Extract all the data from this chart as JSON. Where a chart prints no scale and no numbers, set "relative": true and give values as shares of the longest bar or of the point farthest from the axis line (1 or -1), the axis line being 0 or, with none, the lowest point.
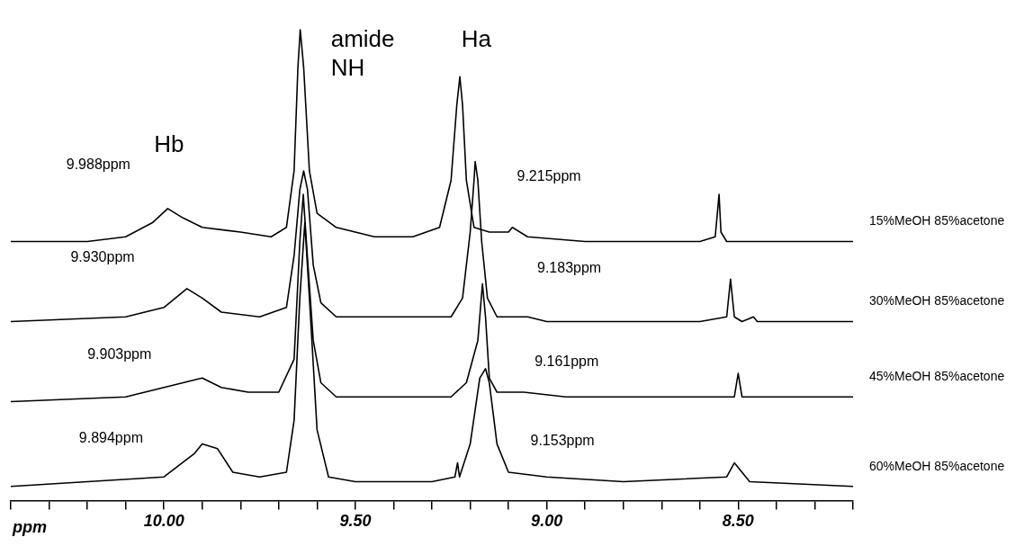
{
  "chart_data": {
    "type": "line",
    "relative": true,
    "xlabel": "ppm",
    "xlim": [
      10.4,
      8.2
    ],
    "xticks": [
      {
        "value": 10.4,
        "label": null
      },
      {
        "value": 10.3,
        "label": null
      },
      {
        "value": 10.2,
        "label": null
      },
      {
        "value": 10.1,
        "label": null
      },
      {
        "value": 10.0,
        "label": "10.00"
      },
      {
        "value": 9.9,
        "label": null
      },
      {
        "value": 9.8,
        "label": null
      },
      {
        "value": 9.7,
        "label": null
      },
      {
        "value": 9.6,
        "label": null
      },
      {
        "value": 9.5,
        "label": "9.50"
      },
      {
        "value": 9.4,
        "label": null
      },
      {
        "value": 9.3,
        "label": null
      },
      {
        "value": 9.2,
        "label": null
      },
      {
        "value": 9.1,
        "label": null
      },
      {
        "value": 9.0,
        "label": "9.00"
      },
      {
        "value": 8.9,
        "label": null
      },
      {
        "value": 8.8,
        "label": null
      },
      {
        "value": 8.7,
        "label": null
      },
      {
        "value": 8.6,
        "label": null
      },
      {
        "value": 8.5,
        "label": "8.50"
      },
      {
        "value": 8.4,
        "label": null
      },
      {
        "value": 8.3,
        "label": null
      },
      {
        "value": 8.2,
        "label": null
      }
    ],
    "grid": false,
    "legend": false,
    "marker": "none",
    "series": [
      {
        "name": "15%MeOH 85%acetone",
        "color": "#000000",
        "x": [
          10.4,
          10.2,
          10.1,
          10.03,
          9.99,
          9.95,
          9.9,
          9.8,
          9.72,
          9.68,
          9.66,
          9.65,
          9.644,
          9.635,
          9.62,
          9.6,
          9.55,
          9.45,
          9.35,
          9.28,
          9.25,
          9.235,
          9.227,
          9.22,
          9.21,
          9.19,
          9.15,
          9.1,
          9.09,
          9.05,
          8.9,
          8.6,
          8.56,
          8.55,
          8.545,
          8.53,
          8.4,
          8.2
        ],
        "values": [
          0.55,
          0.55,
          0.56,
          0.59,
          0.62,
          0.6,
          0.58,
          0.57,
          0.56,
          0.58,
          0.7,
          0.92,
          1,
          0.92,
          0.7,
          0.61,
          0.58,
          0.56,
          0.56,
          0.58,
          0.68,
          0.84,
          0.9,
          0.84,
          0.68,
          0.58,
          0.57,
          0.57,
          0.58,
          0.56,
          0.55,
          0.55,
          0.56,
          0.65,
          0.57,
          0.55,
          0.55,
          0.55
        ]
      },
      {
        "name": "30%MeOH 85%acetone",
        "color": "#000000",
        "x": [
          10.4,
          10.1,
          10.0,
          9.94,
          9.9,
          9.85,
          9.75,
          9.68,
          9.66,
          9.645,
          9.635,
          9.625,
          9.61,
          9.59,
          9.55,
          9.4,
          9.25,
          9.22,
          9.2,
          9.19,
          9.187,
          9.18,
          9.17,
          9.155,
          9.13,
          9.08,
          9.05,
          9.0,
          8.85,
          8.6,
          8.53,
          8.52,
          8.51,
          8.49,
          8.46,
          8.45,
          8.2
        ],
        "values": [
          0.38,
          0.39,
          0.41,
          0.45,
          0.43,
          0.4,
          0.39,
          0.41,
          0.52,
          0.66,
          0.7,
          0.66,
          0.5,
          0.42,
          0.39,
          0.39,
          0.39,
          0.43,
          0.57,
          0.68,
          0.72,
          0.68,
          0.55,
          0.43,
          0.39,
          0.39,
          0.39,
          0.38,
          0.38,
          0.38,
          0.39,
          0.47,
          0.39,
          0.38,
          0.39,
          0.38,
          0.38
        ]
      },
      {
        "name": "45%MeOH 85%acetone",
        "color": "#000000",
        "x": [
          10.4,
          10.1,
          9.95,
          9.9,
          9.85,
          9.78,
          9.7,
          9.66,
          9.645,
          9.636,
          9.628,
          9.61,
          9.59,
          9.55,
          9.4,
          9.25,
          9.21,
          9.18,
          9.168,
          9.16,
          9.15,
          9.13,
          9.1,
          9.06,
          8.95,
          8.7,
          8.51,
          8.5,
          8.49,
          8.45,
          8.2
        ],
        "values": [
          0.21,
          0.22,
          0.25,
          0.26,
          0.24,
          0.23,
          0.23,
          0.3,
          0.55,
          0.65,
          0.55,
          0.34,
          0.25,
          0.22,
          0.22,
          0.22,
          0.25,
          0.34,
          0.46,
          0.39,
          0.26,
          0.23,
          0.23,
          0.23,
          0.22,
          0.22,
          0.22,
          0.27,
          0.22,
          0.22,
          0.22
        ]
      },
      {
        "name": "60%MeOH 85%acetone",
        "color": "#000000",
        "x": [
          10.4,
          10.2,
          10.0,
          9.92,
          9.9,
          9.86,
          9.82,
          9.75,
          9.68,
          9.66,
          9.645,
          9.632,
          9.62,
          9.6,
          9.57,
          9.5,
          9.3,
          9.24,
          9.233,
          9.228,
          9.2,
          9.175,
          9.16,
          9.15,
          9.13,
          9.1,
          9.0,
          8.8,
          8.53,
          8.51,
          8.49,
          8.47,
          8.2
        ],
        "values": [
          0.03,
          0.04,
          0.05,
          0.1,
          0.12,
          0.11,
          0.06,
          0.05,
          0.06,
          0.17,
          0.43,
          0.59,
          0.43,
          0.15,
          0.05,
          0.04,
          0.04,
          0.05,
          0.08,
          0.05,
          0.12,
          0.26,
          0.28,
          0.25,
          0.12,
          0.06,
          0.05,
          0.04,
          0.05,
          0.08,
          0.06,
          0.04,
          0.03
        ]
      }
    ],
    "annotations": [
      "Hb",
      "amide NH",
      "Ha",
      "9.988ppm",
      "9.215ppm",
      "9.930ppm",
      "9.183ppm",
      "9.903ppm",
      "9.161ppm",
      "9.894ppm",
      "9.153ppm"
    ]
  }
}
